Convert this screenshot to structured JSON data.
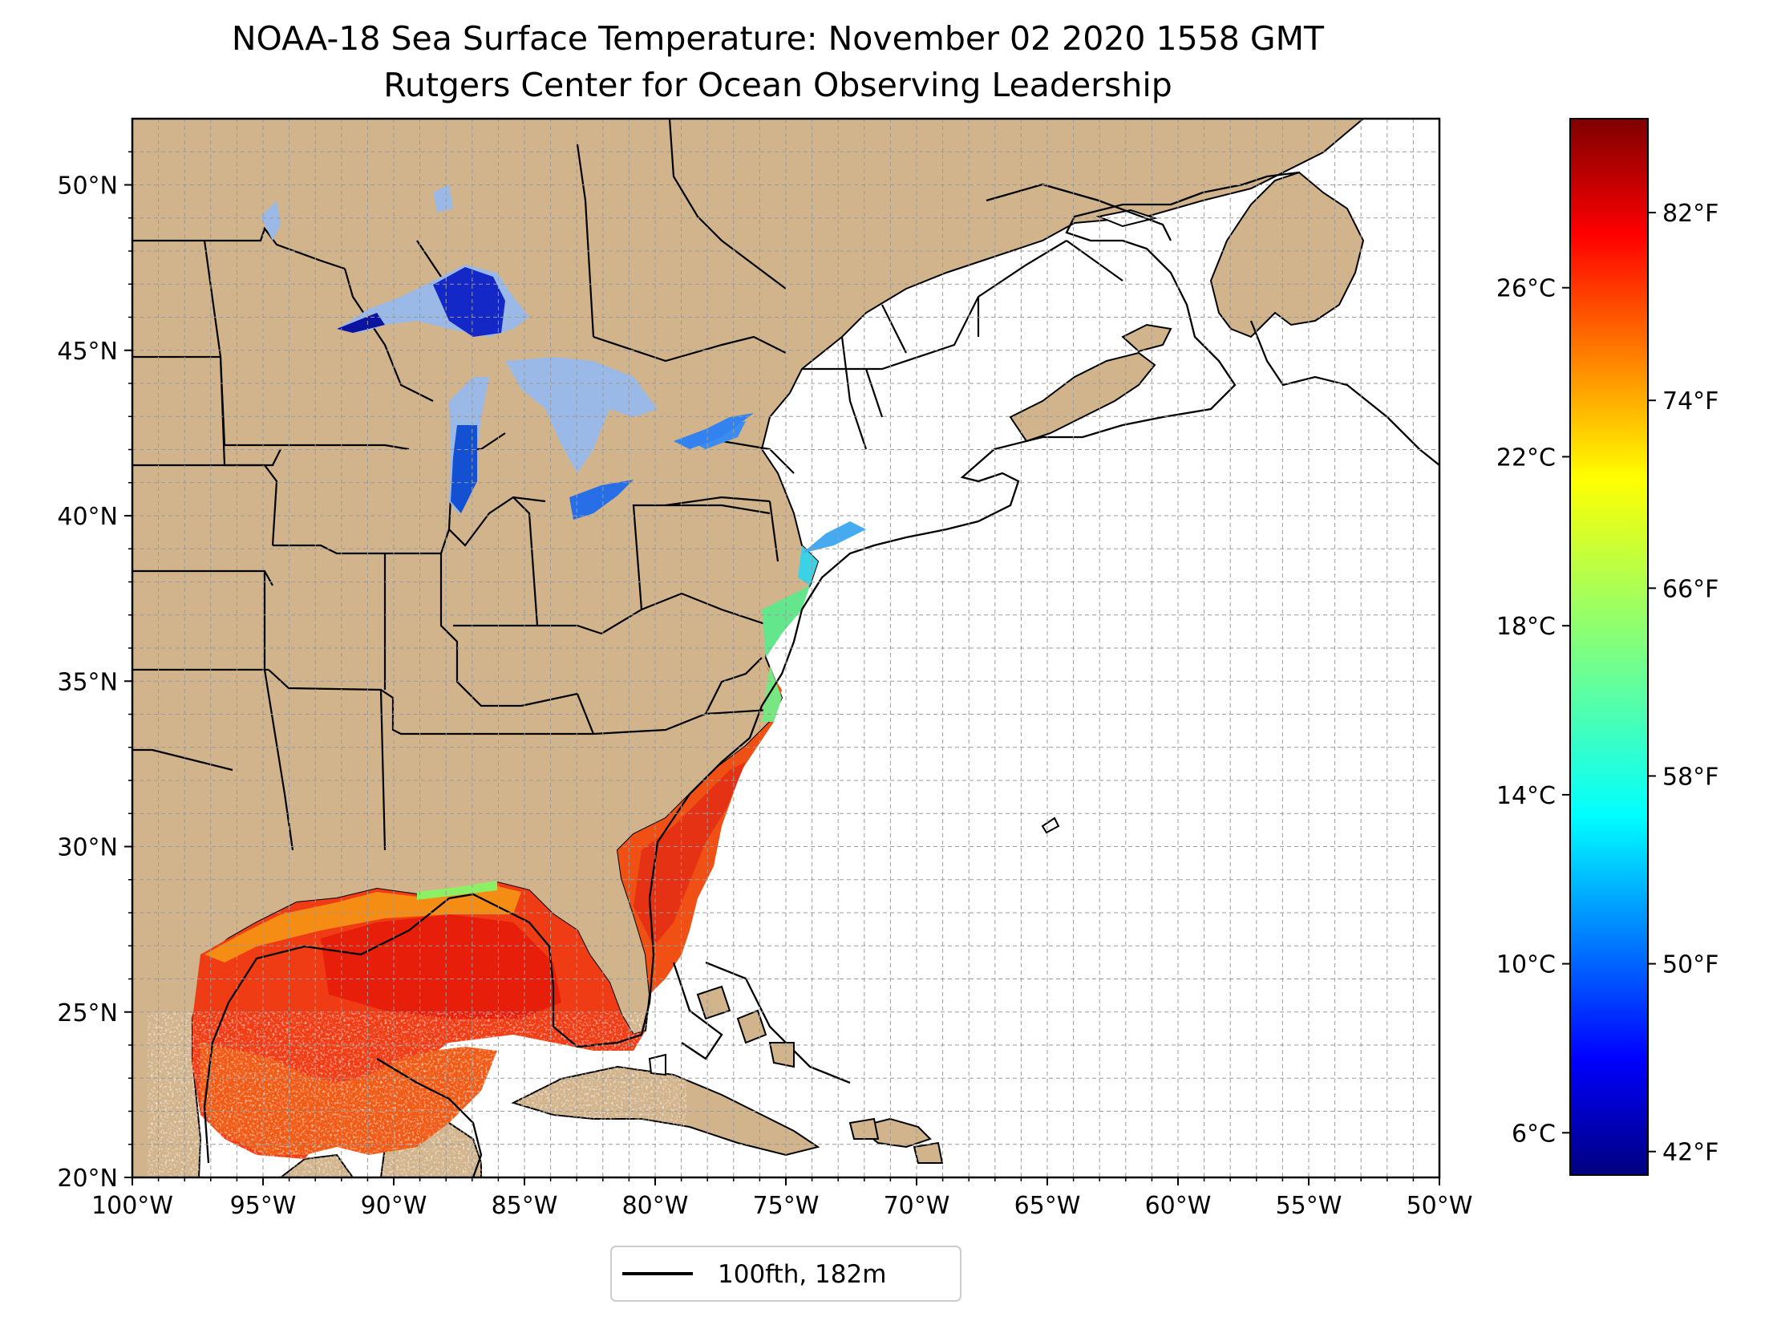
{
  "title": "NOAA-18 Sea Surface Temperature: November 02 2020 1558 GMT",
  "subtitle": "Rutgers Center for Ocean Observing Leadership",
  "map": {
    "lon_range": [
      -100,
      -50
    ],
    "lat_range": [
      20,
      52
    ],
    "lon_ticks": [
      "100°W",
      "95°W",
      "90°W",
      "85°W",
      "80°W",
      "75°W",
      "70°W",
      "65°W",
      "60°W",
      "55°W",
      "50°W"
    ],
    "lat_ticks": [
      "20°N",
      "25°N",
      "30°N",
      "35°N",
      "40°N",
      "45°N",
      "50°N"
    ],
    "grid": "dashed, every 1 degree",
    "land_color": "#d2b48c",
    "ocean_color": "#ffffff",
    "lake_color": "#9ab9e6"
  },
  "legend": {
    "line_label": "100fth, 182m",
    "line_color": "#000000",
    "placement": "bottom-center"
  },
  "colorbar": {
    "colormap": "jet",
    "celsius_range": [
      5,
      30
    ],
    "celsius_ticks": [
      "6°C",
      "10°C",
      "14°C",
      "18°C",
      "22°C",
      "26°C"
    ],
    "fahrenheit_ticks": [
      "42°F",
      "50°F",
      "58°F",
      "66°F",
      "74°F",
      "82°F"
    ]
  }
}
